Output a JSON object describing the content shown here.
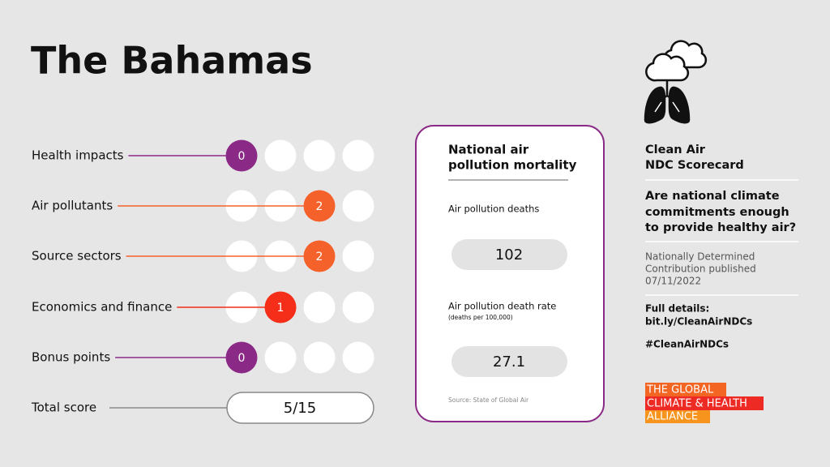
{
  "header": {
    "title": "The Bahamas"
  },
  "rows": [
    {
      "label": "Health impacts",
      "score": 0,
      "color": "#8b2a86"
    },
    {
      "label": "Air pollutants",
      "score": 2,
      "color": "#f5612a"
    },
    {
      "label": "Source sectors",
      "score": 2,
      "color": "#f5612a"
    },
    {
      "label": "Economics and finance",
      "score": 1,
      "color": "#f42e18"
    },
    {
      "label": "Bonus points",
      "score": 0,
      "color": "#8b2a86"
    }
  ],
  "total": {
    "label": "Total score",
    "value": "5/15"
  },
  "card": {
    "title": [
      "National air",
      "pollution mortality"
    ],
    "deaths_label": "Air pollution deaths",
    "deaths": 102,
    "rate_label": "Air pollution death rate",
    "rate_note": "(deaths per 100,000)",
    "rate": 27.1,
    "source": "Source: State of Global Air"
  },
  "sidebar": {
    "title": [
      "Clean Air",
      "NDC Scorecard"
    ],
    "question": [
      "Are national climate",
      "commitments enough",
      "to provide healthy air?"
    ],
    "published": [
      "Nationally Determined",
      "Contribution published",
      "07/11/2022"
    ],
    "details": [
      "Full details:",
      "bit.ly/CleanAirNDCs"
    ],
    "hashtag": "#CleanAirNDCs",
    "logo": [
      "THE GLOBAL",
      "CLIMATE & HEALTH",
      "ALLIANCE"
    ]
  }
}
